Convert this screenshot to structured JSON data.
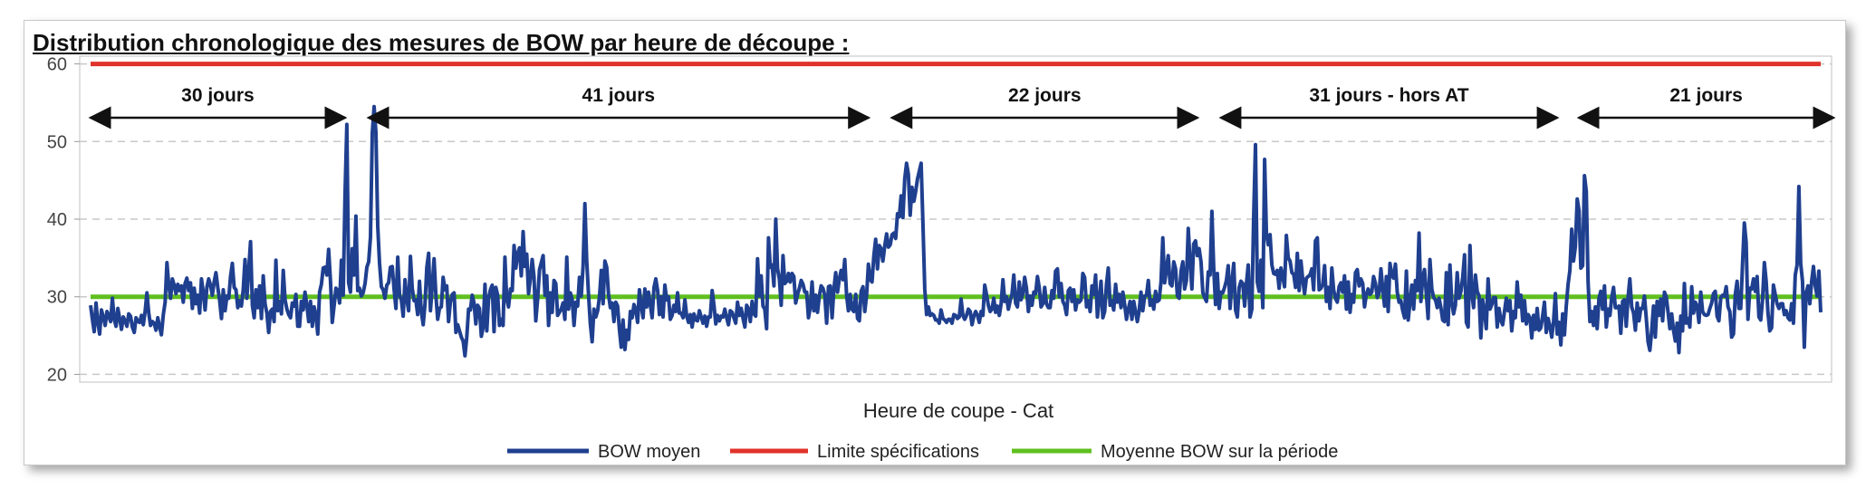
{
  "page": {
    "title": "Distribution chronologique des mesures de BOW par heure de découpe :"
  },
  "chart_data": {
    "type": "line",
    "title": "Distribution chronologique des mesures de BOW par heure de découpe :",
    "xlabel": "Heure de coupe - Cat",
    "ylabel": "",
    "ylim": [
      19,
      61
    ],
    "yticks": [
      20,
      30,
      40,
      50,
      60
    ],
    "grid": "horizontal dashed",
    "legend_position": "bottom",
    "colors": {
      "bow_moyen": "#1f3f8f",
      "limite": "#e0322a",
      "moyenne": "#5fbf1f"
    },
    "periods": [
      {
        "label": "30 jours",
        "start": 0,
        "end": 140
      },
      {
        "label": "41 jours",
        "start": 153,
        "end": 428
      },
      {
        "label": "22 jours",
        "start": 441,
        "end": 609
      },
      {
        "label": "31 jours - hors AT",
        "start": 622,
        "end": 807
      },
      {
        "label": "21 jours",
        "start": 819,
        "end": 959
      }
    ],
    "series": [
      {
        "name": "BOW moyen",
        "type": "line",
        "values": [
          28.9,
          27.1,
          25.5,
          29.2,
          26.7,
          25.2,
          28.3,
          27.4,
          26.3,
          28.1,
          27.5,
          26.8,
          29.8,
          27.1,
          26.2,
          28.5,
          27.2,
          25.8,
          27.4,
          26.9,
          26.2,
          27.8,
          27.5,
          26.1,
          25.4,
          27.3,
          26.8,
          26.7,
          27.6,
          26.4,
          28.1,
          30.5,
          27.9,
          26.3,
          26.8,
          26.6,
          25.7,
          27.3,
          26.1,
          25.1,
          27.7,
          29.3,
          34.4,
          31.5,
          29.8,
          32.3,
          31.5,
          30.4,
          31.6,
          30.8,
          31.4,
          29.3,
          31.7,
          32.4,
          30.8,
          31.8,
          28.5,
          31.1,
          29.1,
          30.2,
          27.9,
          32.3,
          30.6,
          28.3,
          31.2,
          32.3,
          31.5,
          30.2,
          31.9,
          33.1,
          31.2,
          29.6,
          27.2,
          30.9,
          28.2,
          30.1,
          29.8,
          32.6,
          34.3,
          31.2,
          30.9,
          28.6,
          29.5,
          28.8,
          30.9,
          34.8,
          29.8,
          33.4,
          37.1,
          28.9,
          27.3,
          30.9,
          28.6,
          31.4,
          27.2,
          32.7,
          29.1,
          27.9,
          25.4,
          28.1,
          28.4,
          26.8,
          34.7,
          28.2,
          29.4,
          27.8,
          33.4,
          29.6,
          28.4,
          27.7,
          27.3,
          29.2,
          28.8,
          30.3,
          26.2,
          26.2,
          29.4,
          28.3,
          30.6,
          28.9,
          26.8,
          29.4,
          26.2,
          28.7,
          27.6,
          25.2,
          30.6,
          31.6,
          33.7,
          33.8,
          32.8,
          36.1,
          32.1,
          26.7,
          28.8,
          31.1,
          30.8,
          29.2,
          34.7,
          30.2,
          43.2,
          52.2,
          31.8,
          30.6,
          36.2,
          32.8,
          40.4,
          30.8,
          31.1,
          30.1,
          30.5,
          31.7,
          33.8,
          34.5,
          37.7,
          51.1,
          54.5,
          51.2,
          39.1,
          34.3,
          31.3,
          30.9,
          29.8,
          31.5,
          31.8,
          33.8,
          33.9,
          30.9,
          28.5,
          35.1,
          30.2,
          29.6,
          27.5,
          32.2,
          29.7,
          28.2,
          35.2,
          31.1,
          29.5,
          29.6,
          27.7,
          32.0,
          28.1,
          26.4,
          29.1,
          33.8,
          35.6,
          28.2,
          31.4,
          34.9,
          30.2,
          27.1,
          28.5,
          28.7,
          32.5,
          30.9,
          31.4,
          26.8,
          29.3,
          30.3,
          30.5,
          25.4,
          26.4,
          25.6,
          24.8,
          24.3,
          22.4,
          24.8,
          28.4,
          28.3,
          30.2,
          29.2,
          26.5,
          28.9,
          28.5,
          24.9,
          26.1,
          31.6,
          25.6,
          29.8,
          30.9,
          31.5,
          25.5,
          31.2,
          30.2,
          26.3,
          27.1,
          26.3,
          35.1,
          29.7,
          28.7,
          31.0,
          30.8,
          36.6,
          33.7,
          35.6,
          36.3,
          32.7,
          38.4,
          33.9,
          35.5,
          30.4,
          32.3,
          34.8,
          32.6,
          26.9,
          29.8,
          33.5,
          34.4,
          35.3,
          30.2,
          32.7,
          26.3,
          30.5,
          28.0,
          32.1,
          31.7,
          27.6,
          28.0,
          28.4,
          29.2,
          27.1,
          35.1,
          28.4,
          30.5,
          29.6,
          26.3,
          29.3,
          28.8,
          32.5,
          30.1,
          33.9,
          42.0,
          34.7,
          30.3,
          26.5,
          24.2,
          28.4,
          27.4,
          28.2,
          30.0,
          33.4,
          29.1,
          34.6,
          33.8,
          30.3,
          28.6,
          29.2,
          26.8,
          29.3,
          28.8,
          25.8,
          23.5,
          27.0,
          23.2,
          25.7,
          24.5,
          28.1,
          27.3,
          29.0,
          28.3,
          26.7,
          30.9,
          28.9,
          27.3,
          31.0,
          28.7,
          30.6,
          29.0,
          27.3,
          31.2,
          32.3,
          30.8,
          27.7,
          30.0,
          27.4,
          31.5,
          29.6,
          30.0,
          27.1,
          27.6,
          28.9,
          28.1,
          30.5,
          27.9,
          27.9,
          27.3,
          29.6,
          27.5,
          26.7,
          27.7,
          26.1,
          27.8,
          27.0,
          26.9,
          28.2,
          27.4,
          26.6,
          27.5,
          26.2,
          27.4,
          27.4,
          30.8,
          28.9,
          26.5,
          27.6,
          26.9,
          27.5,
          27.4,
          28.4,
          27.3,
          26.4,
          28.2,
          28.0,
          27.3,
          26.6,
          29.3,
          27.6,
          28.5,
          27.2,
          26.1,
          28.9,
          28.4,
          26.8,
          29.4,
          27.8,
          27.5,
          34.9,
          30.1,
          32.7,
          28.8,
          28.4,
          25.9,
          37.6,
          33.8,
          34.1,
          31.4,
          40.0,
          33.6,
          32.3,
          28.9,
          35.3,
          31.7,
          32.0,
          33.0,
          31.9,
          33.0,
          32.6,
          29.2,
          30.3,
          31.1,
          32.1,
          31.6,
          30.6,
          30.6,
          27.3,
          28.6,
          31.9,
          28.2,
          30.2,
          28.0,
          30.1,
          31.4,
          31.1,
          30.2,
          26.6,
          31.3,
          31.4,
          27.3,
          31.0,
          33.1,
          30.6,
          32.3,
          33.4,
          32.2,
          34.8,
          30.2,
          28.2,
          30.3,
          28.4,
          28.1,
          30.3,
          27.2,
          26.9,
          30.7,
          31.3,
          28.1,
          30.2,
          34.2,
          32.2,
          31.9,
          35.3,
          37.4,
          33.6,
          36.6,
          36.2,
          34.6,
          36.6,
          38.1,
          36.4,
          36.7,
          38.0,
          38.2,
          37.5,
          40.7,
          40.3,
          43.0,
          40.2,
          45.2,
          47.2,
          45.8,
          40.5,
          44.1,
          42.3,
          43.6,
          45.2,
          46.2,
          47.2,
          39.4,
          31.0,
          27.7,
          28.7,
          27.6,
          27.8,
          27.6,
          27.0,
          27.0,
          26.6,
          28.3,
          27.2,
          27.0,
          26.7,
          27.1,
          27.1,
          26.6,
          27.7,
          27.6,
          27.2,
          27.4,
          29.7,
          27.6,
          27.1,
          27.6,
          28.4,
          28.1,
          26.4,
          27.5,
          28.1,
          27.6,
          26.7,
          28.1,
          27.6,
          31.5,
          30.3,
          28.9,
          28.1,
          28.4,
          29.8,
          28.0,
          28.8,
          27.6,
          29.1,
          32.2,
          29.4,
          30.0,
          28.4,
          29.5,
          30.3,
          32.8,
          29.2,
          28.7,
          31.9,
          29.6,
          30.4,
          32.5,
          31.1,
          28.1,
          30.1,
          28.9,
          30.6,
          30.4,
          32.6,
          31.2,
          28.7,
          29.1,
          31.2,
          29.1,
          28.6,
          28.6,
          30.8,
          29.8,
          33.3,
          33.6,
          30.0,
          31.7,
          29.4,
          28.9,
          27.7,
          30.8,
          31.1,
          29.4,
          30.9,
          28.3,
          29.6,
          29.3,
          29.6,
          33.0,
          32.5,
          28.7,
          29.5,
          28.1,
          31.4,
          30.3,
          32.8,
          27.4,
          29.6,
          32.0,
          27.3,
          28.1,
          31.6,
          33.7,
          28.9,
          29.5,
          28.3,
          31.6,
          29.3,
          30.3,
          28.6,
          30.6,
          29.0,
          27.1,
          28.4,
          29.4,
          27.1,
          29.4,
          28.1,
          26.8,
          28.2,
          30.6,
          28.2,
          30.1,
          30.2,
          32.1,
          28.9,
          29.6,
          28.4,
          30.7,
          29.4,
          29.6,
          31.9,
          37.6,
          31.8,
          33.5,
          35.3,
          31.7,
          31.4,
          34.5,
          33.6,
          30.1,
          29.8,
          33.3,
          34.5,
          31.0,
          32.1,
          38.8,
          34.6,
          31.0,
          36.8,
          37.2,
          35.3,
          36.2,
          34.5,
          30.5,
          29.9,
          29.4,
          33.2,
          32.8,
          41.0,
          33.7,
          29.0,
          33.0,
          28.5,
          30.6,
          30.5,
          31.2,
          32.1,
          34.0,
          28.5,
          32.0,
          34.3,
          28.3,
          27.4,
          31.2,
          32.0,
          31.7,
          28.8,
          31.7,
          34.1,
          27.4,
          28.4,
          40.3,
          49.6,
          31.9,
          30.7,
          34.7,
          28.6,
          47.7,
          38.1,
          36.7,
          38.0,
          34.1,
          33.0,
          32.9,
          33.4,
          31.1,
          33.7,
          32.6,
          31.3,
          37.9,
          35.0,
          34.6,
          33.1,
          32.9,
          31.2,
          35.6,
          30.8,
          34.6,
          32.2,
          30.4,
          32.4,
          32.6,
          32.8,
          33.6,
          30.9,
          37.2,
          37.6,
          30.9,
          31.1,
          31.6,
          34.0,
          29.4,
          31.2,
          28.5,
          33.7,
          30.9,
          29.8,
          29.3,
          31.3,
          31.8,
          30.6,
          32.7,
          28.4,
          31.9,
          28.0,
          30.3,
          29.3,
          33.1,
          33.5,
          31.4,
          32.3,
          31.7,
          28.7,
          30.3,
          31.0,
          30.3,
          30.6,
          32.6,
          31.7,
          29.9,
          30.5,
          33.6,
          31.0,
          28.8,
          32.6,
          28.1,
          34.3,
          32.8,
          32.4,
          34.2,
          30.6,
          29.3,
          29.5,
          28.2,
          27.3,
          33.3,
          27.0,
          29.3,
          31.5,
          28.4,
          32.1,
          30.8,
          38.2,
          29.4,
          32.4,
          33.5,
          30.4,
          27.2,
          34.8,
          31.0,
          29.9,
          29.6,
          28.6,
          29.8,
          28.6,
          27.0,
          26.8,
          33.1,
          26.4,
          34.1,
          29.3,
          27.8,
          28.9,
          33.1,
          29.8,
          30.7,
          32.5,
          35.4,
          26.7,
          26.1,
          36.6,
          30.4,
          28.6,
          32.8,
          30.7,
          30.1,
          24.7,
          29.6,
          28.1,
          25.9,
          32.3,
          28.4,
          29.0,
          29.9,
          29.9,
          26.1,
          28.5,
          27.0,
          26.4,
          28.1,
          29.8,
          28.2,
          29.5,
          25.6,
          28.1,
          27.3,
          31.9,
          28.7,
          30.2,
          26.9,
          29.5,
          26.5,
          27.7,
          27.3,
          24.7,
          27.6,
          25.8,
          28.5,
          25.7,
          26.0,
          27.5,
          29.3,
          25.4,
          27.2,
          26.1,
          24.8,
          26.9,
          30.4,
          25.2,
          26.7,
          23.8,
          27.8,
          25.1,
          28.8,
          31.6,
          33.4,
          38.7,
          34.6,
          36.4,
          42.6,
          41.1,
          33.7,
          34.0,
          45.6,
          43.6,
          31.9,
          26.8,
          28.1,
          26.3,
          28.7,
          25.9,
          29.8,
          30.7,
          28.4,
          31.4,
          26.1,
          28.4,
          27.6,
          29.9,
          31.2,
          28.6,
          28.6,
          28.8,
          25.3,
          29.4,
          29.6,
          26.2,
          29.9,
          32.3,
          28.7,
          27.9,
          25.7,
          29.2,
          26.9,
          28.5,
          28.5,
          30.1,
          27.3,
          24.2,
          23.1,
          25.6,
          28.8,
          24.8,
          29.4,
          27.6,
          29.7,
          26.9,
          30.6,
          30.0,
          28.0,
          25.9,
          27.8,
          25.7,
          24.3,
          26.6,
          22.8,
          27.5,
          25.6,
          31.7,
          26.6,
          27.2,
          26.1,
          31.3,
          27.9,
          29.3,
          28.8,
          26.7,
          30.6,
          28.1,
          27.7,
          27.6,
          27.7,
          28.5,
          29.2,
          30.4,
          30.7,
          27.5,
          26.9,
          29.9,
          30.2,
          30.1,
          31.3,
          28.7,
          28.1,
          24.8,
          25.2,
          30.3,
          32.0,
          28.5,
          28.5,
          34.2,
          39.5,
          37.0,
          27.1,
          31.1,
          31.0,
          32.3,
          30.7,
          32.6,
          27.4,
          27.0,
          29.7,
          34.4,
          32.0,
          27.9,
          25.6,
          26.0,
          31.5,
          30.3,
          29.1,
          28.5,
          29.1,
          29.1,
          27.7,
          28.2,
          27.3,
          27.0,
          29.1,
          26.6,
          32.8,
          34.1,
          44.2,
          34.3,
          32.0,
          23.5,
          30.5,
          31.4,
          29.1,
          32.0,
          33.9,
          31.4,
          30.1,
          33.3,
          28.0
        ]
      },
      {
        "name": "Limite spécifications",
        "type": "constant",
        "value": 60
      },
      {
        "name": "Moyenne BOW sur la période",
        "type": "constant",
        "value": 30
      }
    ]
  }
}
